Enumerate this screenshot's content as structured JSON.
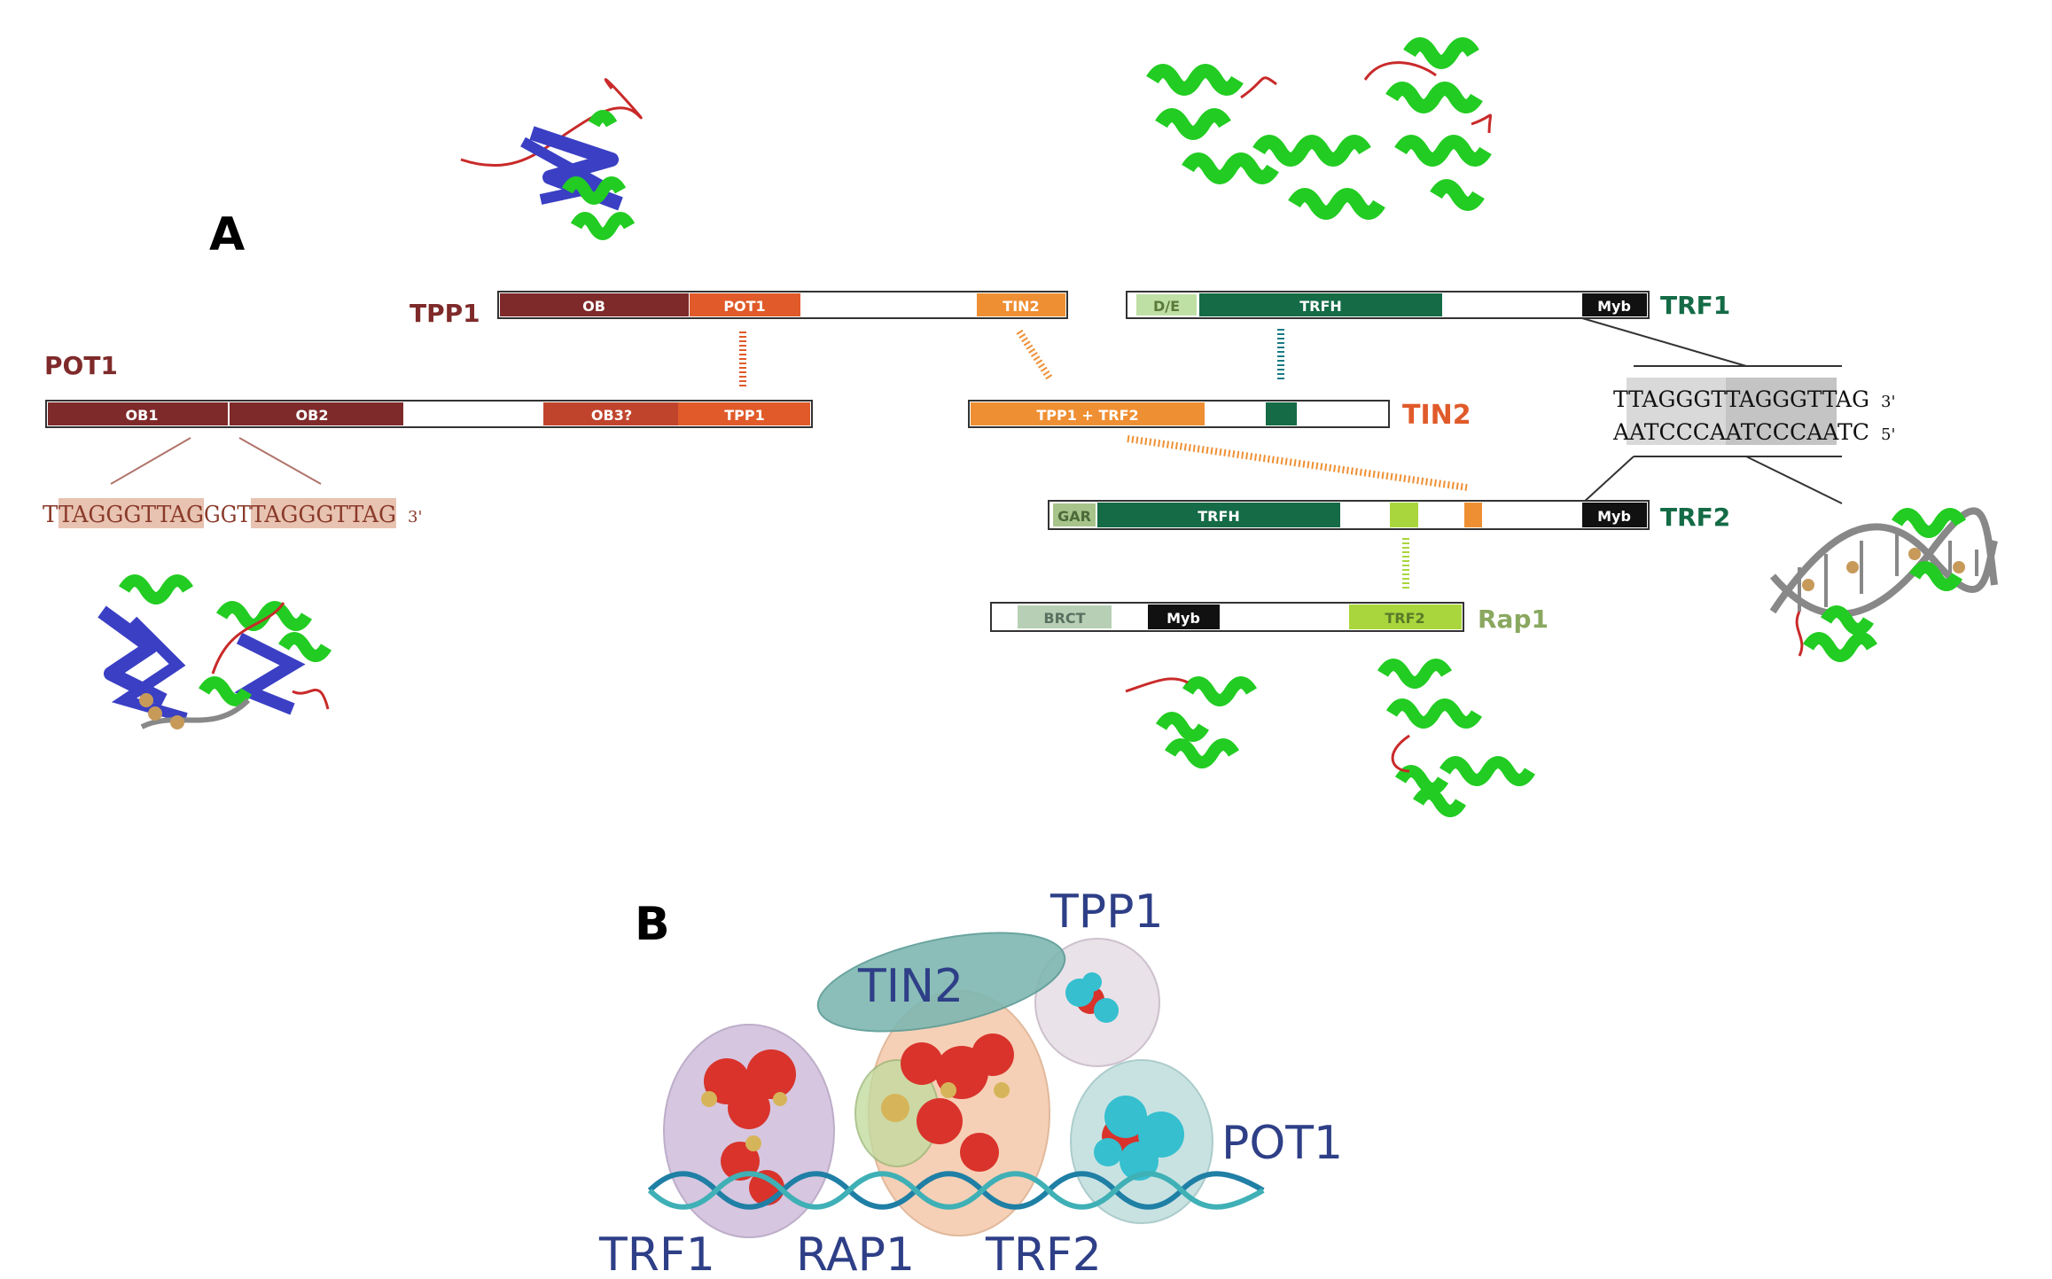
{
  "panel_a": {
    "label": "A",
    "tpp1": {
      "name": "TPP1",
      "domains": {
        "ob": "OB",
        "pot1": "POT1",
        "tin2": "TIN2"
      }
    },
    "pot1": {
      "name": "POT1",
      "domains": {
        "ob1": "OB1",
        "ob2": "OB2",
        "ob3": "OB3?",
        "tpp1": "TPP1"
      },
      "sequence": {
        "a": "T",
        "b": "TAGGGTTAG",
        "c": "GGT",
        "d": "TAGGGTTAG",
        "end": "3'"
      }
    },
    "tin2": {
      "name": "TIN2",
      "domains": {
        "tpp1_trf2": "TPP1 + TRF2"
      }
    },
    "trf1": {
      "name": "TRF1",
      "domains": {
        "de": "D/E",
        "trfh": "TRFH",
        "myb": "Myb"
      },
      "dna": {
        "top_a": "TTAGGGT",
        "top_b": "TAGG",
        "top_c": "GTTAG",
        "top_end": "3'",
        "bot_a": "AATCCCA",
        "bot_b": "ATCC",
        "bot_c": "CAATC",
        "bot_end": "5'"
      }
    },
    "trf2": {
      "name": "TRF2",
      "domains": {
        "gar": "GAR",
        "trfh": "TRFH",
        "myb": "Myb"
      }
    },
    "rap1": {
      "name": "Rap1",
      "domains": {
        "brct": "BRCT",
        "myb": "Myb",
        "trf2": "TRF2"
      }
    }
  },
  "panel_b": {
    "label": "B",
    "labels": {
      "tpp1": "TPP1",
      "tin2": "TIN2",
      "pot1": "POT1",
      "trf1": "TRF1",
      "rap1": "RAP1",
      "trf2": "TRF2"
    }
  },
  "colors": {
    "dark_red": "#7f2a2a",
    "orange_red": "#e05a2a",
    "orange": "#ef8f33",
    "dark_green": "#146b46",
    "light_green": "#a9d63c",
    "pale_green": "#bfe0a5",
    "black": "#111111",
    "navy": "#2e3f87",
    "protein_green": "#22cc22",
    "protein_blue": "#3a3fc4",
    "loop_red": "#c92a2a"
  }
}
